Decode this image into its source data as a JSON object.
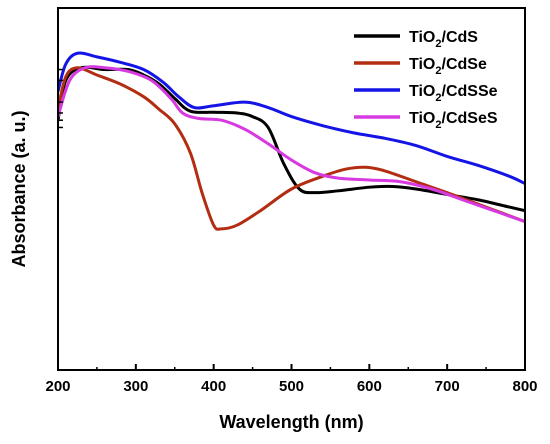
{
  "chart_data": {
    "type": "line",
    "xlabel": "Wavelength (nm)",
    "ylabel": "Absorbance (a. u.)",
    "xlim": [
      200,
      800
    ],
    "ylim": [
      0,
      1
    ],
    "x_ticks": [
      "200",
      "300",
      "400",
      "500",
      "600",
      "700",
      "800"
    ],
    "y_ticks_labeled": false,
    "grid": false,
    "legend_position": "top-right",
    "colors": {
      "TiO2/CdS": "#000000",
      "TiO2/CdSe": "#b22d12",
      "TiO2/CdSSe": "#1414e6",
      "TiO2/CdSeS": "#d63ae0"
    },
    "series": [
      {
        "name": "TiO2/CdS",
        "legend": {
          "base": "TiO",
          "sub": "2",
          "rest": "/CdS"
        },
        "points": [
          [
            200,
            0.69
          ],
          [
            210,
            0.8
          ],
          [
            230,
            0.835
          ],
          [
            260,
            0.83
          ],
          [
            290,
            0.83
          ],
          [
            310,
            0.815
          ],
          [
            330,
            0.79
          ],
          [
            350,
            0.75
          ],
          [
            370,
            0.715
          ],
          [
            400,
            0.712
          ],
          [
            430,
            0.71
          ],
          [
            450,
            0.7
          ],
          [
            470,
            0.67
          ],
          [
            490,
            0.57
          ],
          [
            510,
            0.5
          ],
          [
            530,
            0.49
          ],
          [
            560,
            0.495
          ],
          [
            600,
            0.505
          ],
          [
            630,
            0.507
          ],
          [
            660,
            0.5
          ],
          [
            700,
            0.485
          ],
          [
            740,
            0.47
          ],
          [
            780,
            0.45
          ],
          [
            800,
            0.44
          ]
        ]
      },
      {
        "name": "TiO2/CdSe",
        "legend": {
          "base": "TiO",
          "sub": "2",
          "rest": "/CdSe"
        },
        "points": [
          [
            200,
            0.72
          ],
          [
            210,
            0.81
          ],
          [
            225,
            0.835
          ],
          [
            250,
            0.815
          ],
          [
            280,
            0.79
          ],
          [
            310,
            0.755
          ],
          [
            330,
            0.72
          ],
          [
            350,
            0.68
          ],
          [
            370,
            0.6
          ],
          [
            385,
            0.49
          ],
          [
            400,
            0.4
          ],
          [
            410,
            0.39
          ],
          [
            430,
            0.4
          ],
          [
            460,
            0.44
          ],
          [
            500,
            0.5
          ],
          [
            540,
            0.535
          ],
          [
            570,
            0.555
          ],
          [
            595,
            0.56
          ],
          [
            620,
            0.55
          ],
          [
            660,
            0.52
          ],
          [
            700,
            0.49
          ],
          [
            750,
            0.45
          ],
          [
            800,
            0.41
          ]
        ]
      },
      {
        "name": "TiO2/CdSSe",
        "legend": {
          "base": "TiO",
          "sub": "2",
          "rest": "/CdSSe"
        },
        "points": [
          [
            200,
            0.77
          ],
          [
            210,
            0.845
          ],
          [
            225,
            0.875
          ],
          [
            250,
            0.865
          ],
          [
            280,
            0.85
          ],
          [
            310,
            0.83
          ],
          [
            335,
            0.795
          ],
          [
            355,
            0.755
          ],
          [
            375,
            0.725
          ],
          [
            400,
            0.73
          ],
          [
            440,
            0.74
          ],
          [
            470,
            0.725
          ],
          [
            500,
            0.7
          ],
          [
            540,
            0.675
          ],
          [
            580,
            0.655
          ],
          [
            620,
            0.64
          ],
          [
            660,
            0.62
          ],
          [
            700,
            0.59
          ],
          [
            740,
            0.565
          ],
          [
            780,
            0.535
          ],
          [
            800,
            0.515
          ]
        ]
      },
      {
        "name": "TiO2/CdSeS",
        "legend": {
          "base": "TiO",
          "sub": "2",
          "rest": "/CdSeS"
        },
        "points": [
          [
            200,
            0.7
          ],
          [
            215,
            0.8
          ],
          [
            235,
            0.835
          ],
          [
            260,
            0.835
          ],
          [
            290,
            0.825
          ],
          [
            320,
            0.8
          ],
          [
            345,
            0.75
          ],
          [
            360,
            0.71
          ],
          [
            380,
            0.695
          ],
          [
            410,
            0.69
          ],
          [
            440,
            0.665
          ],
          [
            470,
            0.625
          ],
          [
            500,
            0.58
          ],
          [
            530,
            0.545
          ],
          [
            560,
            0.53
          ],
          [
            600,
            0.525
          ],
          [
            640,
            0.52
          ],
          [
            680,
            0.5
          ],
          [
            720,
            0.47
          ],
          [
            760,
            0.44
          ],
          [
            800,
            0.41
          ]
        ]
      }
    ]
  }
}
